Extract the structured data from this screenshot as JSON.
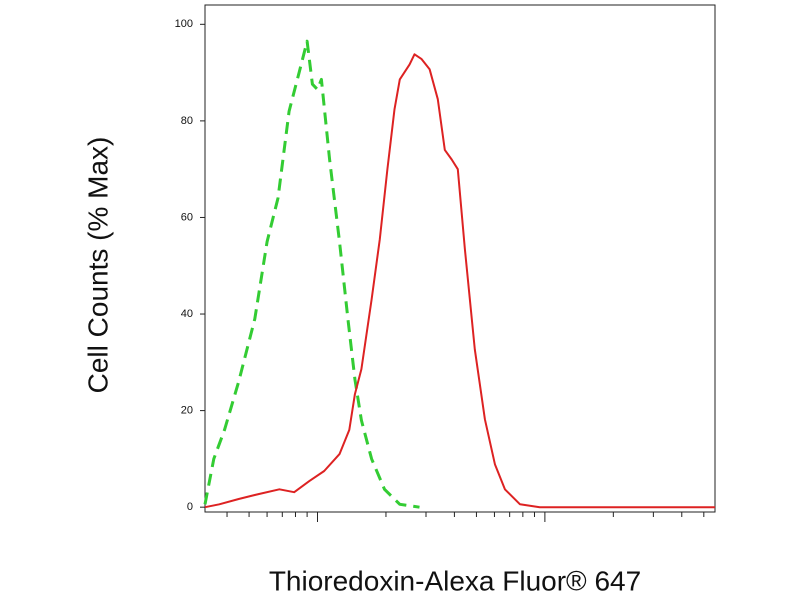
{
  "chart_data": {
    "type": "line",
    "x_label": "Thioredoxin-Alexa Fluor® 647",
    "y_label": "Cell Counts (% Max)",
    "xscale": "log",
    "xlim": [
      32,
      5600
    ],
    "ylim": [
      -1,
      104
    ],
    "yticks": [
      0,
      20,
      40,
      60,
      80,
      100
    ],
    "xticks": [
      100,
      1000
    ],
    "xminor": [
      40,
      50,
      60,
      70,
      80,
      90,
      200,
      300,
      400,
      500,
      600,
      700,
      800,
      900,
      2000,
      3000,
      4000,
      5000
    ],
    "series": [
      {
        "color": "#33cc33",
        "dash": true,
        "x": [
          32,
          35,
          39,
          45,
          53,
          60,
          67,
          75,
          83,
          90,
          95,
          100,
          104,
          113,
          125,
          136,
          146,
          156,
          173,
          197,
          230,
          281
        ],
        "values": [
          0.6,
          10,
          16,
          26,
          39,
          55,
          64,
          82,
          90,
          96.5,
          87.6,
          86.5,
          88.6,
          72,
          55,
          39,
          26.5,
          18,
          10,
          3.7,
          0.6,
          0
        ]
      },
      {
        "color": "#dd2222",
        "dash": false,
        "x": [
          32,
          37,
          45,
          55,
          68,
          79,
          92,
          107,
          125,
          138,
          146,
          156,
          173,
          188,
          203,
          218,
          230,
          254,
          267,
          287,
          311,
          338,
          363,
          389,
          414,
          445,
          492,
          545,
          603,
          667,
          777,
          950,
          1750,
          5600
        ],
        "values": [
          0,
          0.6,
          1.7,
          2.7,
          3.7,
          3.1,
          5.4,
          7.5,
          11,
          16,
          23.4,
          28.6,
          43,
          55.5,
          70,
          82.4,
          88.6,
          91.7,
          93.8,
          92.8,
          90.7,
          84.5,
          74,
          72,
          70,
          53.4,
          32.7,
          18.2,
          8.9,
          3.7,
          0.6,
          0,
          0,
          0
        ]
      }
    ]
  }
}
